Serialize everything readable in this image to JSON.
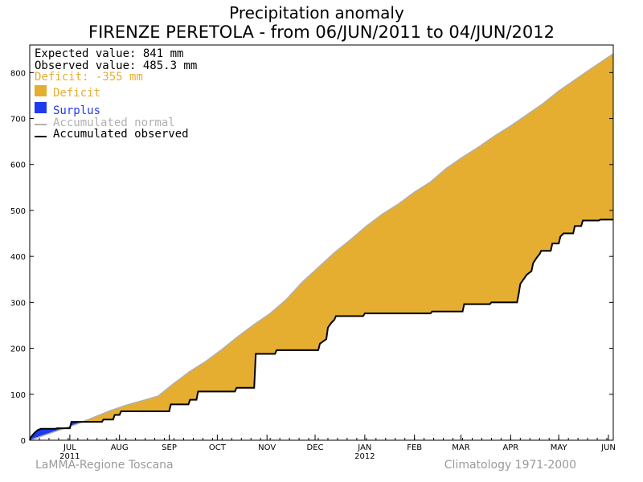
{
  "chart_data": {
    "type": "area",
    "title": "Precipitation anomaly",
    "subtitle": "FIRENZE PERETOLA - from 06/JUN/2011 to 04/JUN/2012",
    "ylim": [
      0,
      860
    ],
    "xlim": [
      0,
      364
    ],
    "y_ticks": [
      0,
      100,
      200,
      300,
      400,
      500,
      600,
      700,
      800
    ],
    "x_ticks": [
      {
        "label": "JUL",
        "day": 25,
        "year": "2011"
      },
      {
        "label": "AUG",
        "day": 56
      },
      {
        "label": "SEP",
        "day": 87
      },
      {
        "label": "OCT",
        "day": 117
      },
      {
        "label": "NOV",
        "day": 148
      },
      {
        "label": "DEC",
        "day": 178
      },
      {
        "label": "JAN",
        "day": 209,
        "year": "2012"
      },
      {
        "label": "FEB",
        "day": 240
      },
      {
        "label": "MAR",
        "day": 269
      },
      {
        "label": "APR",
        "day": 300
      },
      {
        "label": "MAY",
        "day": 330
      },
      {
        "label": "JUN",
        "day": 361
      }
    ],
    "stats": {
      "expected": "Expected value: 841 mm",
      "observed": "Observed value: 485.3 mm",
      "deficit": "Deficit: -355 mm"
    },
    "legend": {
      "deficit": "Deficit",
      "surplus": "Surplus",
      "normal": "Accumulated normal",
      "observed": "Accumulated observed"
    },
    "colors": {
      "deficit": "#E5AE30",
      "surplus": "#1F3BF0",
      "normal": "#B0B0B0",
      "observed": "#000000",
      "deficit_text": "#E5AE30",
      "surplus_text": "#1F3BF0",
      "normal_text": "#B0B0B0"
    },
    "series": [
      {
        "name": "Accumulated normal",
        "points": [
          [
            0,
            0
          ],
          [
            10,
            12
          ],
          [
            20,
            24
          ],
          [
            30,
            36
          ],
          [
            40,
            50
          ],
          [
            50,
            64
          ],
          [
            60,
            76
          ],
          [
            70,
            86
          ],
          [
            80,
            96
          ],
          [
            90,
            124
          ],
          [
            100,
            150
          ],
          [
            110,
            172
          ],
          [
            120,
            198
          ],
          [
            130,
            226
          ],
          [
            140,
            252
          ],
          [
            150,
            276
          ],
          [
            160,
            306
          ],
          [
            170,
            344
          ],
          [
            180,
            376
          ],
          [
            190,
            408
          ],
          [
            200,
            436
          ],
          [
            210,
            466
          ],
          [
            220,
            492
          ],
          [
            230,
            514
          ],
          [
            240,
            540
          ],
          [
            250,
            562
          ],
          [
            260,
            592
          ],
          [
            270,
            616
          ],
          [
            280,
            638
          ],
          [
            290,
            662
          ],
          [
            300,
            684
          ],
          [
            310,
            708
          ],
          [
            320,
            732
          ],
          [
            330,
            760
          ],
          [
            340,
            784
          ],
          [
            350,
            808
          ],
          [
            364,
            841
          ]
        ]
      },
      {
        "name": "Accumulated observed",
        "points": [
          [
            0,
            0
          ],
          [
            1,
            8
          ],
          [
            3,
            16
          ],
          [
            5,
            22
          ],
          [
            7,
            25
          ],
          [
            16,
            25
          ],
          [
            17,
            26
          ],
          [
            25,
            26
          ],
          [
            26,
            40
          ],
          [
            45,
            40
          ],
          [
            46,
            45
          ],
          [
            52,
            45
          ],
          [
            53,
            55
          ],
          [
            56,
            55
          ],
          [
            57,
            63
          ],
          [
            87,
            63
          ],
          [
            88,
            78
          ],
          [
            99,
            78
          ],
          [
            100,
            88
          ],
          [
            104,
            88
          ],
          [
            105,
            106
          ],
          [
            128,
            106
          ],
          [
            129,
            114
          ],
          [
            140,
            114
          ],
          [
            141,
            188
          ],
          [
            153,
            188
          ],
          [
            154,
            196
          ],
          [
            180,
            196
          ],
          [
            181,
            210
          ],
          [
            185,
            220
          ],
          [
            186,
            245
          ],
          [
            188,
            255
          ],
          [
            190,
            262
          ],
          [
            191,
            270
          ],
          [
            208,
            270
          ],
          [
            209,
            276
          ],
          [
            250,
            276
          ],
          [
            251,
            280
          ],
          [
            270,
            280
          ],
          [
            271,
            296
          ],
          [
            287,
            296
          ],
          [
            288,
            300
          ],
          [
            304,
            300
          ],
          [
            305,
            318
          ],
          [
            306,
            340
          ],
          [
            309,
            355
          ],
          [
            310,
            360
          ],
          [
            313,
            368
          ],
          [
            314,
            385
          ],
          [
            316,
            396
          ],
          [
            318,
            405
          ],
          [
            319,
            412
          ],
          [
            325,
            412
          ],
          [
            326,
            428
          ],
          [
            330,
            428
          ],
          [
            331,
            443
          ],
          [
            333,
            450
          ],
          [
            339,
            450
          ],
          [
            340,
            466
          ],
          [
            344,
            466
          ],
          [
            345,
            478
          ],
          [
            355,
            478
          ],
          [
            356,
            480
          ],
          [
            364,
            480
          ]
        ]
      }
    ]
  },
  "footer": {
    "left": "LaMMA-Regione Toscana",
    "right": "Climatology 1971-2000"
  }
}
